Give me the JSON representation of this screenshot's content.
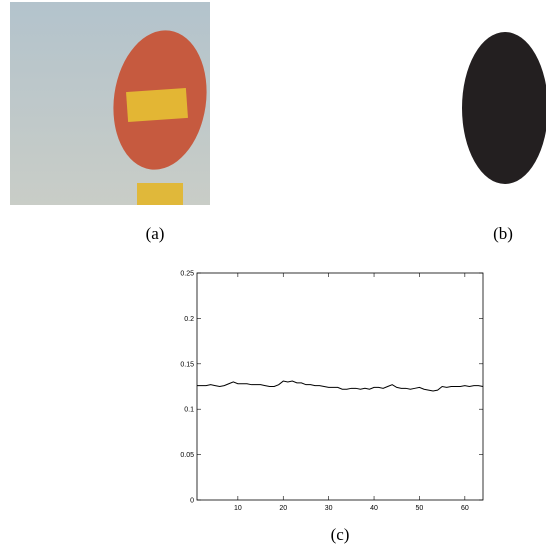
{
  "figures": [
    {
      "label": "(a)"
    },
    {
      "label": "(b)"
    }
  ],
  "chart_data": {
    "type": "line",
    "caption": "(c)",
    "x": [
      1,
      2,
      3,
      4,
      5,
      6,
      7,
      8,
      9,
      10,
      11,
      12,
      13,
      14,
      15,
      16,
      17,
      18,
      19,
      20,
      21,
      22,
      23,
      24,
      25,
      26,
      27,
      28,
      29,
      30,
      31,
      32,
      33,
      34,
      35,
      36,
      37,
      38,
      39,
      40,
      41,
      42,
      43,
      44,
      45,
      46,
      47,
      48,
      49,
      50,
      51,
      52,
      53,
      54,
      55,
      56,
      57,
      58,
      59,
      60,
      61,
      62,
      63,
      64
    ],
    "series": [
      {
        "color": "#000000",
        "values": [
          0.126,
          0.126,
          0.126,
          0.127,
          0.126,
          0.125,
          0.126,
          0.128,
          0.13,
          0.128,
          0.128,
          0.128,
          0.127,
          0.127,
          0.127,
          0.126,
          0.125,
          0.125,
          0.127,
          0.131,
          0.13,
          0.131,
          0.129,
          0.129,
          0.127,
          0.127,
          0.126,
          0.126,
          0.125,
          0.124,
          0.124,
          0.124,
          0.122,
          0.122,
          0.123,
          0.123,
          0.122,
          0.123,
          0.122,
          0.124,
          0.124,
          0.123,
          0.125,
          0.127,
          0.124,
          0.123,
          0.123,
          0.122,
          0.123,
          0.124,
          0.122,
          0.121,
          0.12,
          0.121,
          0.125,
          0.124,
          0.125,
          0.125,
          0.125,
          0.126,
          0.125,
          0.126,
          0.126,
          0.125
        ]
      }
    ],
    "xlim": [
      1,
      64
    ],
    "xticks": [
      10,
      20,
      30,
      40,
      50,
      60
    ],
    "ylim": [
      0,
      0.25
    ],
    "yticks": [
      0,
      0.05,
      0.1,
      0.15,
      0.2,
      0.25
    ]
  }
}
